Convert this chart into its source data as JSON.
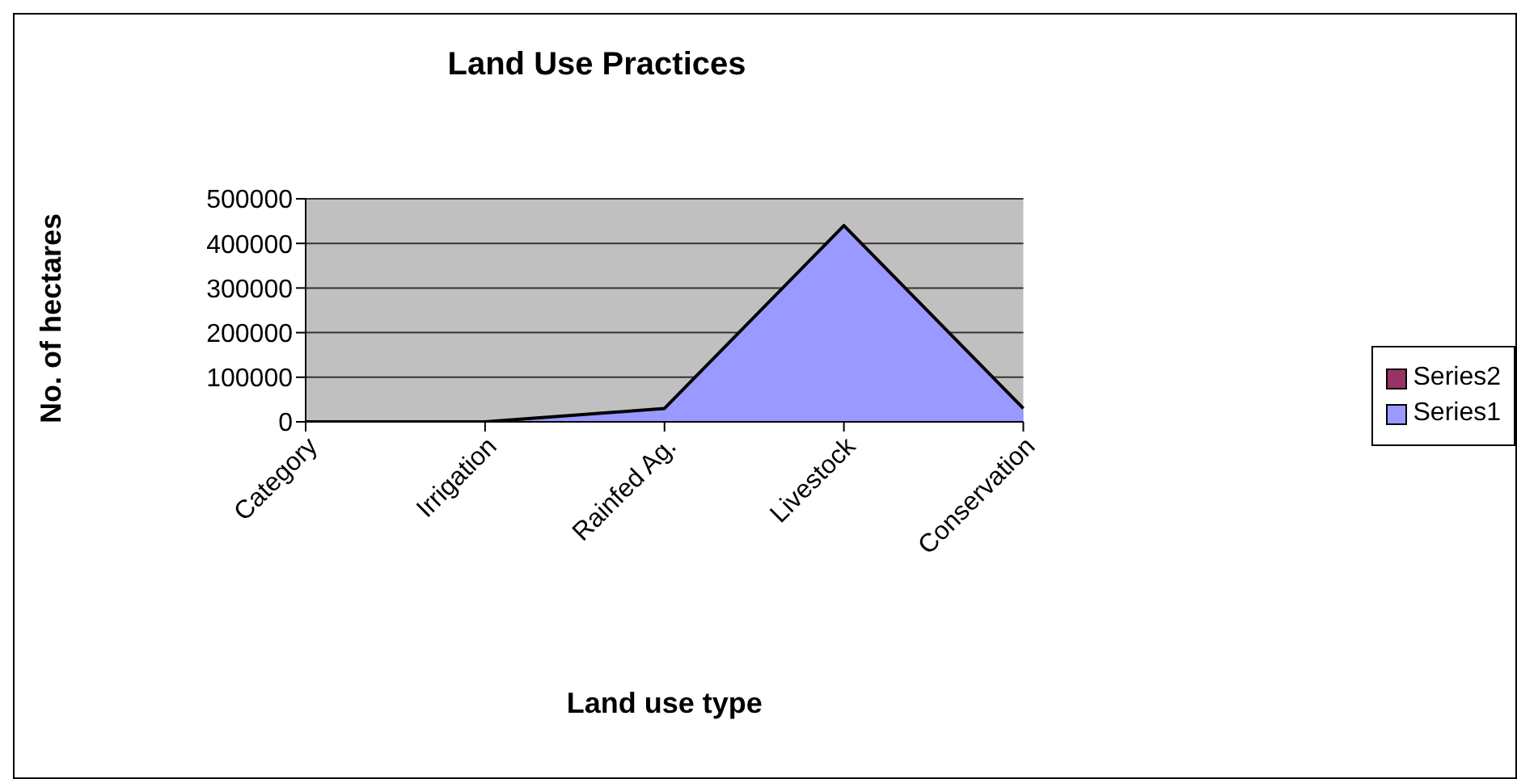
{
  "chart_data": {
    "type": "area",
    "title": "Land Use Practices",
    "xlabel": "Land use type",
    "ylabel": "No. of hectares",
    "categories": [
      "Category",
      "Irrigation",
      "Rainfed Ag.",
      "Livestock",
      "Conservation"
    ],
    "series": [
      {
        "name": "Series1",
        "color": "#9999ff",
        "values": [
          0,
          0,
          30000,
          440000,
          30000
        ]
      },
      {
        "name": "Series2",
        "color": "#993366",
        "values": [
          null,
          null,
          null,
          null,
          null
        ]
      }
    ],
    "ylim": [
      0,
      500000
    ],
    "yticks": [
      0,
      100000,
      200000,
      300000,
      400000,
      500000
    ],
    "grid": "y",
    "legend": "right"
  }
}
